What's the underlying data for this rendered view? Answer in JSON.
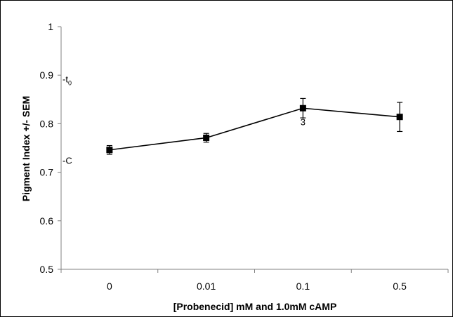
{
  "chart_data": {
    "type": "line",
    "title": "",
    "xlabel": "[Probenecid] mM and 1.0mM cAMP",
    "ylabel": "Pigment Index +/- SEM",
    "categories": [
      "0",
      "0.01",
      "0.1",
      "0.5"
    ],
    "ylim": [
      0.5,
      1.0
    ],
    "yticks": [
      "0.5",
      "0.6",
      "0.7",
      "0.8",
      "0.9",
      "1"
    ],
    "grid": false,
    "series": [
      {
        "values": [
          0.746,
          0.771,
          0.832,
          0.814
        ],
        "error": [
          0.009,
          0.009,
          0.02,
          0.03
        ],
        "color": "#000000",
        "marker": "square"
      }
    ],
    "annotations": [
      {
        "text_prefix": "-t",
        "text_sub": "0",
        "y": 0.885
      },
      {
        "text": "-C",
        "y": 0.725
      },
      {
        "text": "3",
        "category_index": 2,
        "y": 0.797
      }
    ]
  }
}
